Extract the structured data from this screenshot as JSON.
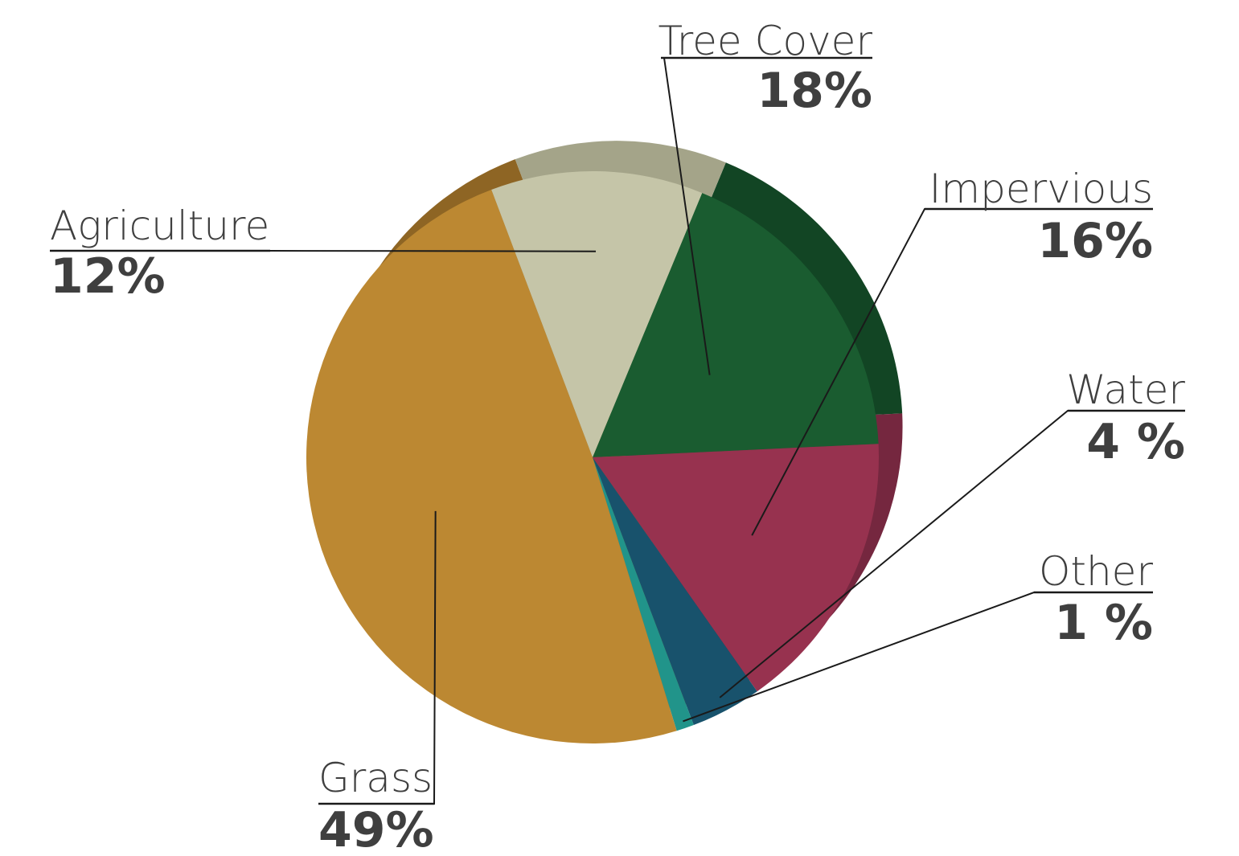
{
  "chart_data": {
    "type": "pie",
    "title": "",
    "slices": [
      {
        "label": "Tree Cover",
        "value": 18,
        "display": "18%",
        "color": "#1a5c30",
        "side_color": "#124524"
      },
      {
        "label": "Impervious",
        "value": 16,
        "display": "16%",
        "color": "#97324f",
        "side_color": "#75273f"
      },
      {
        "label": "Water",
        "value": 4,
        "display": "4 %",
        "color": "#18526c",
        "side_color": "#103c4f"
      },
      {
        "label": "Other",
        "value": 1,
        "display": "1 %",
        "color": "#21948a",
        "side_color": "#187068"
      },
      {
        "label": "Grass",
        "value": 49,
        "display": "49%",
        "color": "#bc8832",
        "side_color": "#8e6524"
      },
      {
        "label": "Agriculture",
        "value": 12,
        "display": "12%",
        "color": "#c5c5a8",
        "side_color": "#a4a489"
      }
    ]
  }
}
